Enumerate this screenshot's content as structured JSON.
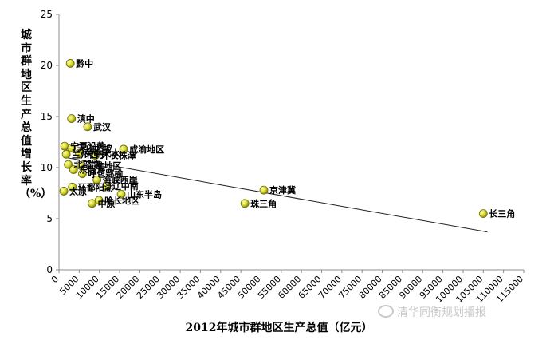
{
  "chart_data": {
    "type": "scatter",
    "title": "",
    "xlabel": "2012年城市群地区生产总值（亿元）",
    "ylabel": "城市群地区生产总值增长率（%）",
    "xlim": [
      0,
      115000
    ],
    "ylim": [
      0,
      25
    ],
    "xticks": [
      0,
      5000,
      10000,
      15000,
      20000,
      25000,
      30000,
      35000,
      40000,
      45000,
      50000,
      55000,
      60000,
      65000,
      70000,
      75000,
      80000,
      85000,
      90000,
      95000,
      100000,
      105000,
      110000,
      115000
    ],
    "yticks": [
      0,
      5,
      10,
      15,
      20,
      25
    ],
    "grid": false,
    "legend": "none",
    "point_color": "#d7d92a",
    "trendline": {
      "x": [
        1500,
        106000
      ],
      "y": [
        11.0,
        3.7
      ]
    },
    "points": [
      {
        "label": "黔中",
        "x": 2800,
        "y": 20.2
      },
      {
        "label": "滇中",
        "x": 3100,
        "y": 14.8
      },
      {
        "label": "武汉",
        "x": 7100,
        "y": 14.0
      },
      {
        "label": "宁夏沿黄",
        "x": 1400,
        "y": 12.1
      },
      {
        "label": "天山北坡",
        "x": 3100,
        "y": 11.9
      },
      {
        "label": "兰州西宁",
        "x": 1800,
        "y": 11.3
      },
      {
        "label": "关中天水",
        "x": 5000,
        "y": 11.4
      },
      {
        "label": "环长株潭",
        "x": 9000,
        "y": 11.2
      },
      {
        "label": "成渝地区",
        "x": 16000,
        "y": 11.8
      },
      {
        "label": "北部湾",
        "x": 2300,
        "y": 10.3
      },
      {
        "label": "江淮地区",
        "x": 5400,
        "y": 10.2
      },
      {
        "label": "呼包鄂榆",
        "x": 5800,
        "y": 9.4
      },
      {
        "label": "东陇海",
        "x": 3600,
        "y": 9.8
      },
      {
        "label": "海峡西岸",
        "x": 9400,
        "y": 8.8
      },
      {
        "label": "环鄱阳湖",
        "x": 3300,
        "y": 8.1
      },
      {
        "label": "辽中南",
        "x": 11800,
        "y": 8.2
      },
      {
        "label": "太原",
        "x": 1200,
        "y": 7.7
      },
      {
        "label": "山东半岛",
        "x": 15400,
        "y": 7.4
      },
      {
        "label": "京津冀",
        "x": 50700,
        "y": 7.8
      },
      {
        "label": "中原",
        "x": 8200,
        "y": 6.5
      },
      {
        "label": "哈长地区",
        "x": 9900,
        "y": 6.8
      },
      {
        "label": "珠三角",
        "x": 46000,
        "y": 6.5
      },
      {
        "label": "长三角",
        "x": 105000,
        "y": 5.5
      }
    ]
  },
  "watermark": "清华同衡规划播报"
}
